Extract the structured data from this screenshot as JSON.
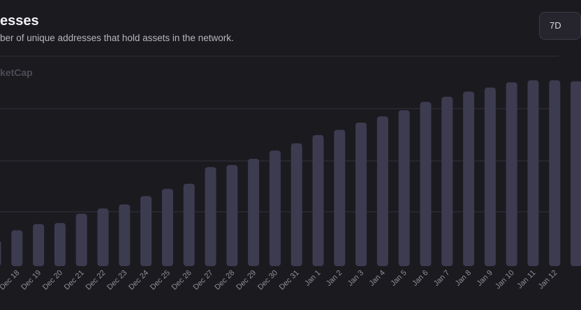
{
  "header": {
    "title": "esses",
    "subtitle": "ber of unique addresses that hold assets in the network.",
    "range_button": "7D",
    "watermark": "ketCap"
  },
  "colors": {
    "background": "#1b1a1f",
    "bar": "#3d3b4f",
    "gridline": "#34333b",
    "tick_label": "#8f8e98"
  },
  "chart_data": {
    "type": "bar",
    "title": "",
    "xlabel": "",
    "ylabel": "",
    "grid": true,
    "ylim": [
      0,
      100
    ],
    "categories": [
      "",
      "Dec 18",
      "Dec 19",
      "Dec 20",
      "Dec 21",
      "Dec 22",
      "Dec 23",
      "Dec 24",
      "Dec 25",
      "Dec 26",
      "Dec 27",
      "Dec 28",
      "Dec 29",
      "Dec 30",
      "Dec 31",
      "Jan 1",
      "Jan 2",
      "Jan 3",
      "Jan 4",
      "Jan 5",
      "Jan 6",
      "Jan 7",
      "Jan 8",
      "Jan 9",
      "Jan 10",
      "Jan 11",
      "Jan 12",
      ""
    ],
    "values": [
      11,
      16,
      19,
      19.5,
      24,
      26.5,
      28.5,
      32.5,
      36,
      38.5,
      46.5,
      47.5,
      50.5,
      54.5,
      58,
      62,
      64.5,
      68,
      71,
      74,
      78,
      80.5,
      83,
      85,
      87.5,
      88.5,
      88.5,
      88
    ]
  }
}
